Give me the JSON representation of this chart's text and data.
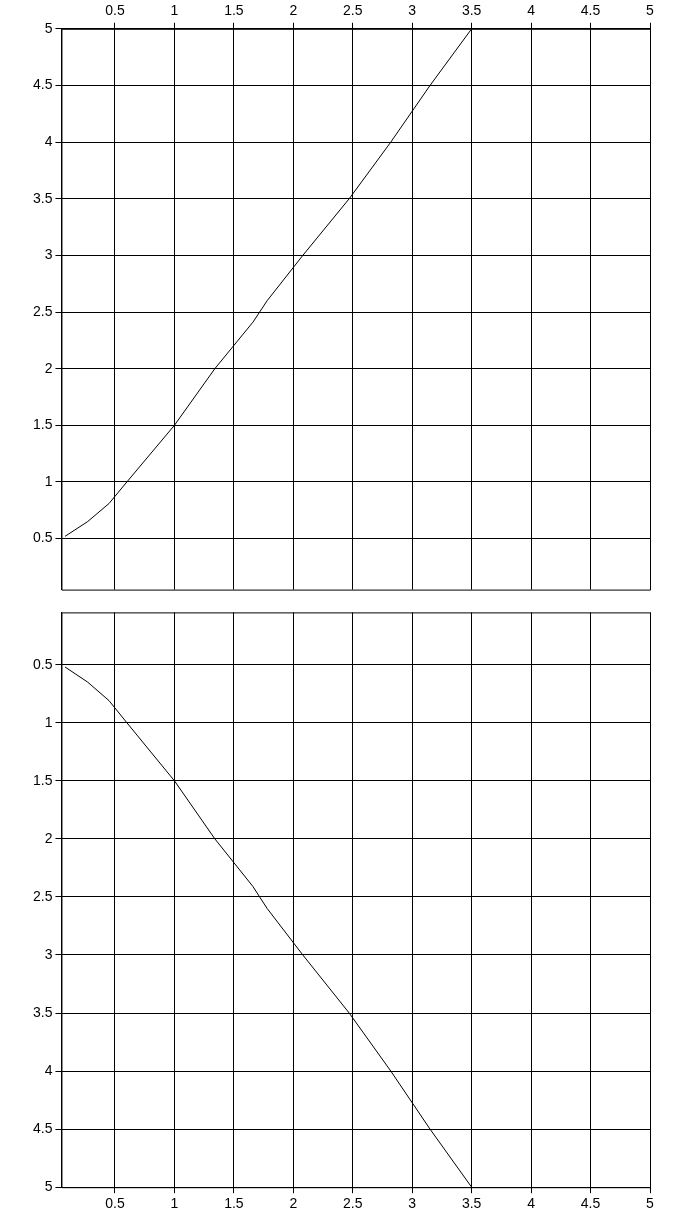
{
  "chart_data": [
    {
      "type": "line",
      "x": [
        0.08,
        0.27,
        0.45,
        0.6,
        1.0,
        1.34,
        1.66,
        1.78,
        2.08,
        2.47,
        2.82,
        3.15,
        3.5
      ],
      "series": [
        {
          "color": "#000000",
          "values": [
            0.52,
            0.65,
            0.81,
            1.0,
            1.5,
            2.0,
            2.41,
            2.6,
            3.0,
            3.5,
            4.0,
            4.5,
            5.0
          ]
        }
      ],
      "xlim": [
        0.05,
        5
      ],
      "ylim": [
        0.05,
        5
      ],
      "xticks": [
        0.5,
        1,
        1.5,
        2,
        2.5,
        3,
        3.5,
        4,
        4.5,
        5
      ],
      "yticks": [
        0.5,
        1,
        1.5,
        2,
        2.5,
        3,
        3.5,
        4,
        4.5,
        5
      ],
      "grid": true,
      "legend": false,
      "marker": "none",
      "line_style": "solid"
    },
    {
      "type": "line",
      "x": [
        0.08,
        0.27,
        0.45,
        0.6,
        1.0,
        1.34,
        1.66,
        1.78,
        2.08,
        2.47,
        2.82,
        3.15,
        3.5
      ],
      "series": [
        {
          "color": "#000000",
          "values": [
            0.52,
            0.65,
            0.81,
            1.0,
            1.5,
            2.0,
            2.41,
            2.6,
            3.0,
            3.5,
            4.0,
            4.5,
            5.0
          ]
        }
      ],
      "xlim": [
        0.05,
        5
      ],
      "ylim": [
        5,
        0.05
      ],
      "xticks": [
        0.5,
        1,
        1.5,
        2,
        2.5,
        3,
        3.5,
        4,
        4.5,
        5
      ],
      "yticks": [
        0.5,
        1,
        1.5,
        2,
        2.5,
        3,
        3.5,
        4,
        4.5,
        5
      ],
      "grid": true,
      "legend": false,
      "marker": "none",
      "line_style": "solid"
    }
  ]
}
